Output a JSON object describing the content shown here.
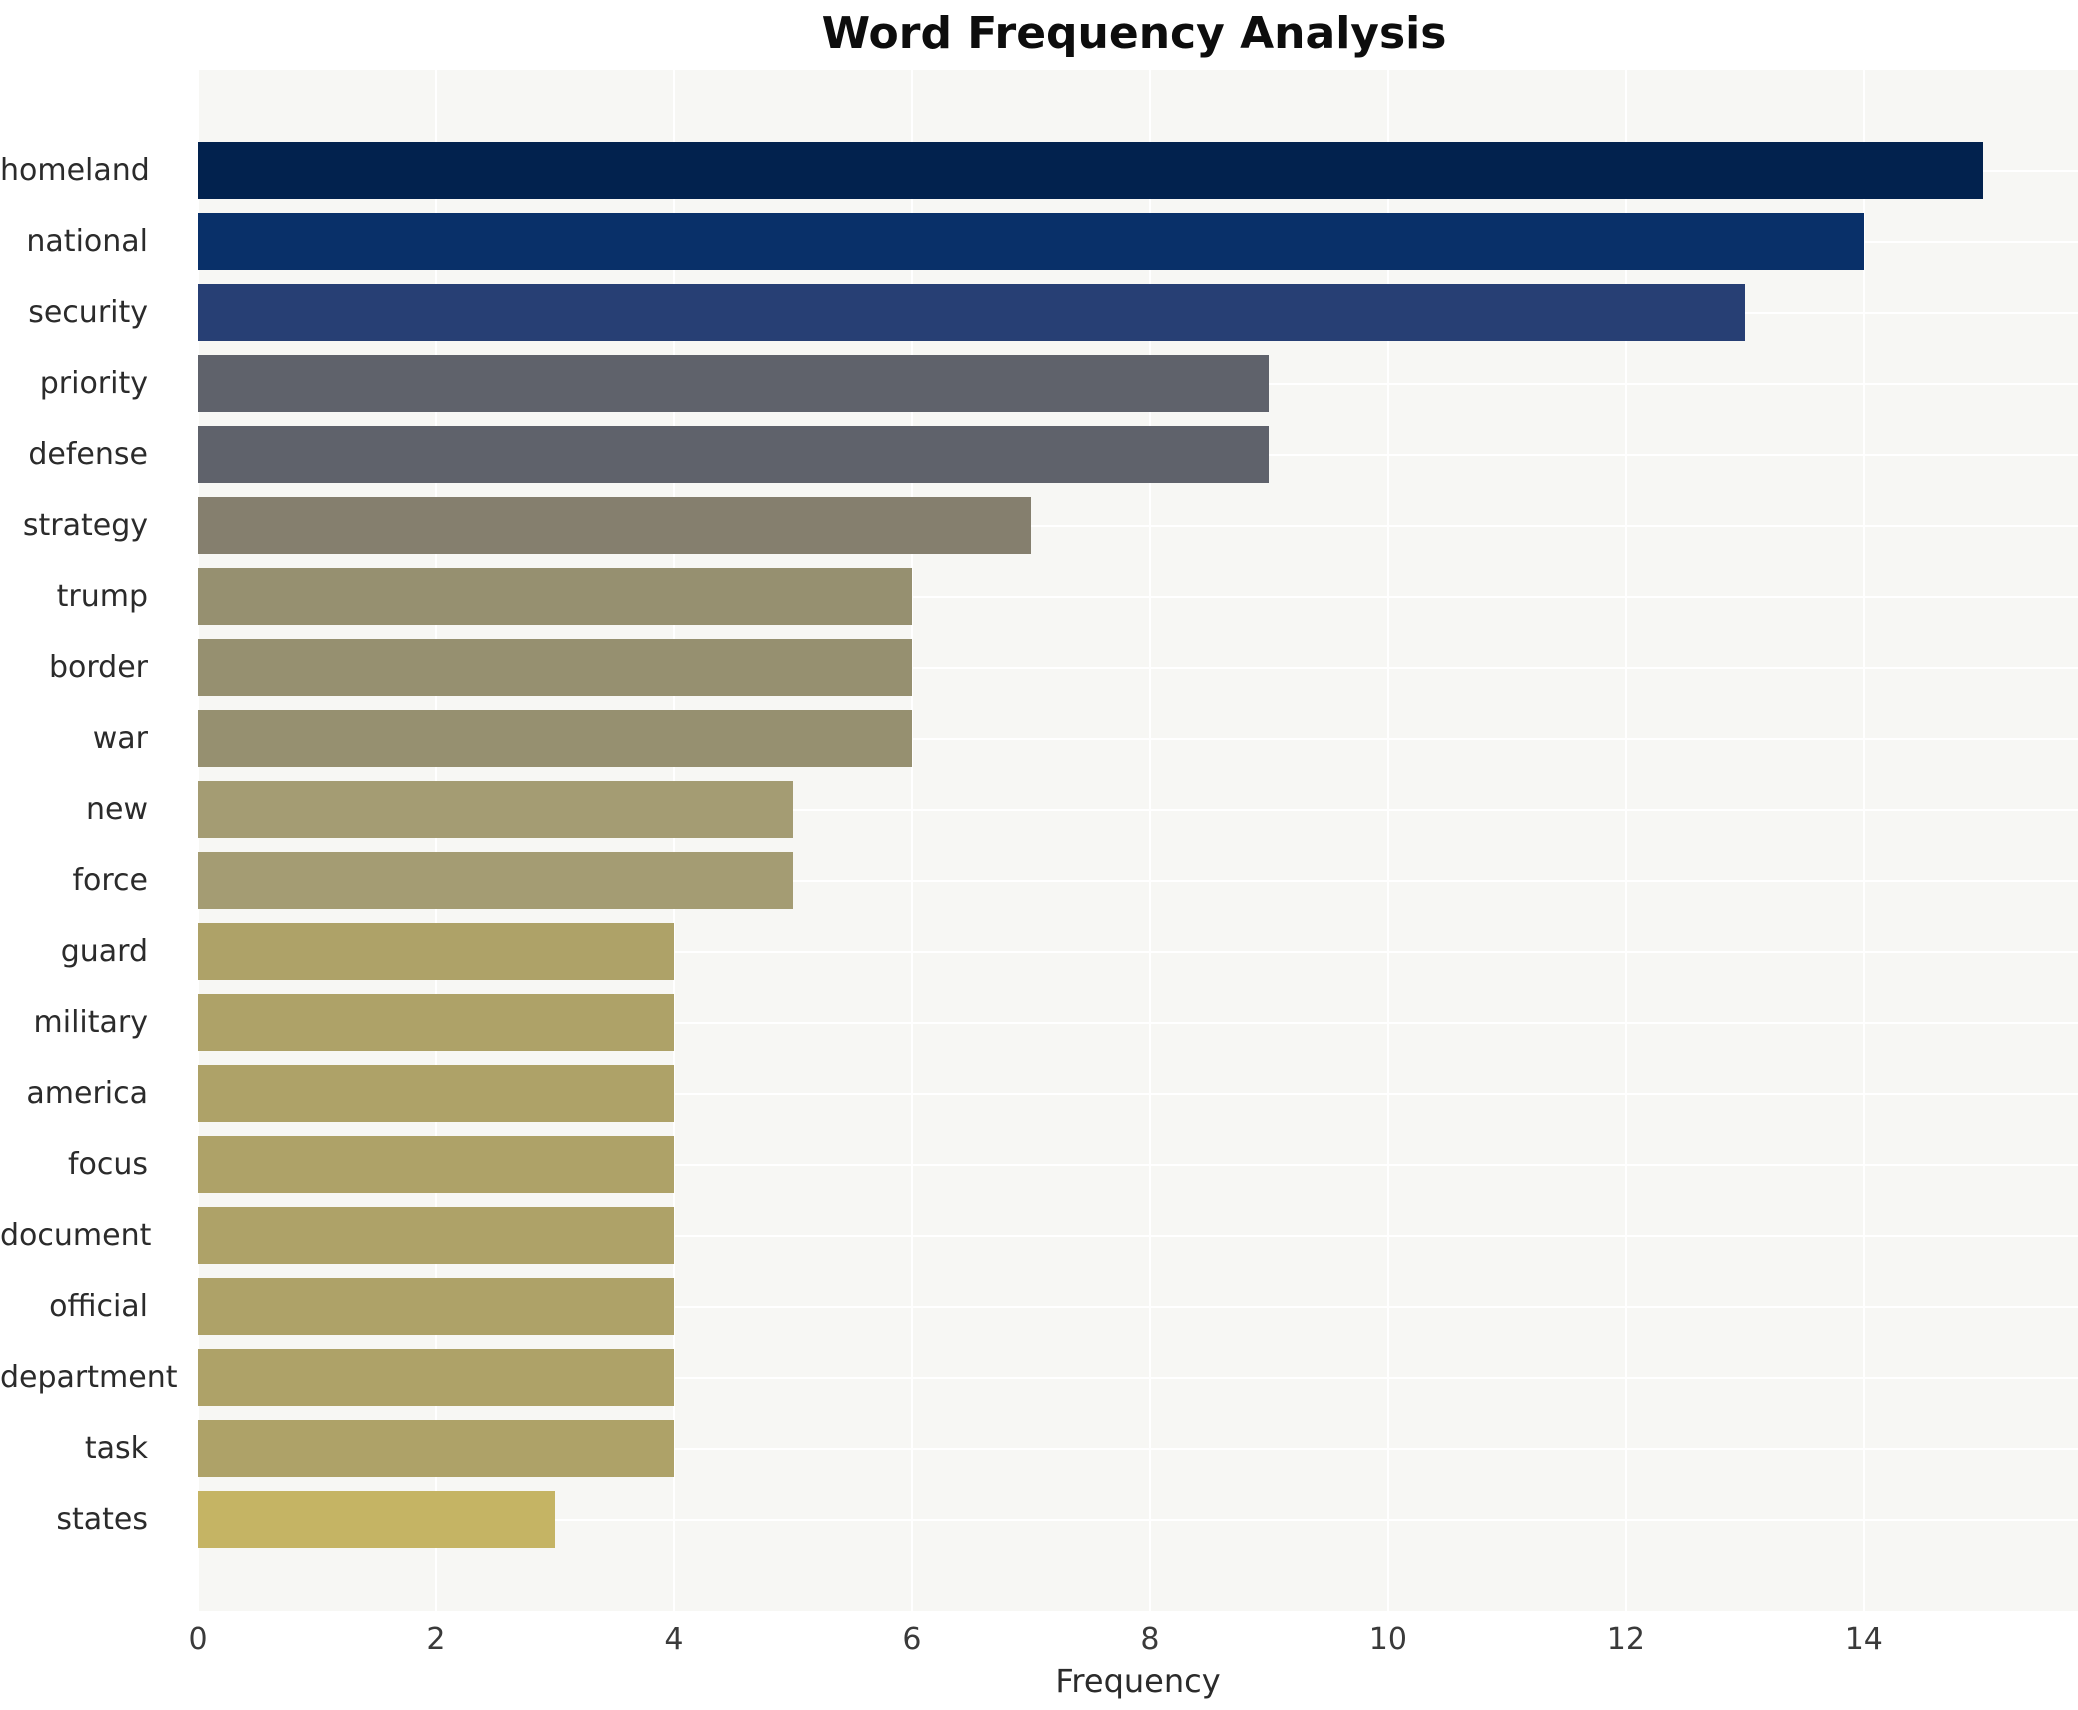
{
  "title": "Word Frequency Analysis",
  "chart_data": {
    "type": "bar",
    "orientation": "horizontal",
    "title": "Word Frequency Analysis",
    "xlabel": "Frequency",
    "ylabel": "",
    "categories": [
      "homeland",
      "national",
      "security",
      "priority",
      "defense",
      "strategy",
      "trump",
      "border",
      "war",
      "new",
      "force",
      "guard",
      "military",
      "america",
      "focus",
      "document",
      "official",
      "department",
      "task",
      "states"
    ],
    "values": [
      15,
      14,
      13,
      9,
      9,
      7,
      6,
      6,
      6,
      5,
      5,
      4,
      4,
      4,
      4,
      4,
      4,
      4,
      4,
      3
    ],
    "bar_colors": [
      "#02224e",
      "#093069",
      "#273f74",
      "#5f626b",
      "#5f626b",
      "#857f6e",
      "#969070",
      "#969070",
      "#969070",
      "#a49c73",
      "#a49c73",
      "#aea268",
      "#aea268",
      "#aea268",
      "#aea268",
      "#aea268",
      "#aea268",
      "#aea268",
      "#aea268",
      "#c5b464"
    ],
    "x_ticks": [
      0,
      2,
      4,
      6,
      8,
      10,
      12,
      14
    ],
    "xlim": [
      0,
      15.8
    ],
    "grid": true,
    "legend": false,
    "colors": {
      "figure_background": "#ffffff",
      "plot_background": "#f7f7f4",
      "gridline": "#ffffff",
      "title_text": "#0d0d0d",
      "label_text": "#2b2b2b",
      "tick_text": "#3a3a3a"
    }
  }
}
